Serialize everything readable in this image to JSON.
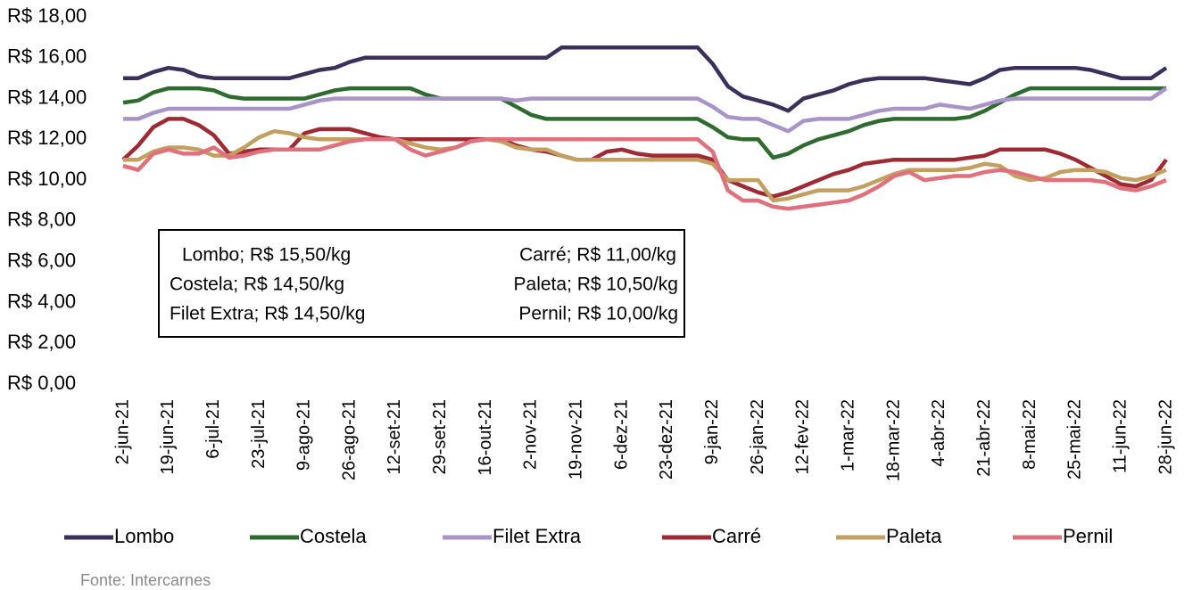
{
  "chart_data": {
    "type": "line",
    "categories": [
      "2-jun-21",
      null,
      null,
      "19-jun-21",
      null,
      null,
      "6-jul-21",
      null,
      null,
      "23-jul-21",
      null,
      null,
      "9-ago-21",
      null,
      null,
      "26-ago-21",
      null,
      null,
      "12-set-21",
      null,
      null,
      "29-set-21",
      null,
      null,
      "16-out-21",
      null,
      null,
      "2-nov-21",
      null,
      null,
      "19-nov-21",
      null,
      null,
      "6-dez-21",
      null,
      null,
      "23-dez-21",
      null,
      null,
      "9-jan-22",
      null,
      null,
      "26-jan-22",
      null,
      null,
      "12-fev-22",
      null,
      null,
      "1-mar-22",
      null,
      null,
      "18-mar-22",
      null,
      null,
      "4-abr-22",
      null,
      null,
      "21-abr-22",
      null,
      null,
      "8-mai-22",
      null,
      null,
      "25-mai-22",
      null,
      null,
      "11-jun-22",
      null,
      null,
      "28-jun-22"
    ],
    "series": [
      {
        "name": "Lombo",
        "color": "#3d2f5b",
        "values": [
          15,
          15,
          15.3,
          15.5,
          15.4,
          15.1,
          15,
          15,
          15,
          15,
          15,
          15,
          15.2,
          15.4,
          15.5,
          15.8,
          16,
          16,
          16,
          16,
          16,
          16,
          16,
          16,
          16,
          16,
          16,
          16,
          16,
          16.5,
          16.5,
          16.5,
          16.5,
          16.5,
          16.5,
          16.5,
          16.5,
          16.5,
          16.5,
          15.7,
          14.6,
          14.1,
          13.9,
          13.7,
          13.4,
          14.0,
          14.2,
          14.4,
          14.7,
          14.9,
          15,
          15,
          15,
          15,
          14.9,
          14.8,
          14.7,
          15.0,
          15.4,
          15.5,
          15.5,
          15.5,
          15.5,
          15.5,
          15.4,
          15.2,
          15,
          15,
          15,
          15.5
        ]
      },
      {
        "name": "Costela",
        "color": "#2e6b2e",
        "values": [
          13.8,
          13.9,
          14.3,
          14.5,
          14.5,
          14.5,
          14.4,
          14.1,
          14,
          14,
          14,
          14,
          14,
          14.2,
          14.4,
          14.5,
          14.5,
          14.5,
          14.5,
          14.5,
          14.2,
          14,
          14,
          14,
          14,
          14,
          13.6,
          13.2,
          13,
          13,
          13,
          13,
          13,
          13,
          13,
          13,
          13,
          13,
          13,
          12.6,
          12.1,
          12,
          12,
          11.1,
          11.3,
          11.7,
          12,
          12.2,
          12.4,
          12.7,
          12.9,
          13,
          13,
          13,
          13,
          13,
          13.1,
          13.4,
          13.8,
          14.2,
          14.5,
          14.5,
          14.5,
          14.5,
          14.5,
          14.5,
          14.5,
          14.5,
          14.5,
          14.5
        ]
      },
      {
        "name": "Filet Extra",
        "color": "#a894c8",
        "values": [
          13,
          13,
          13.3,
          13.5,
          13.5,
          13.5,
          13.5,
          13.5,
          13.5,
          13.5,
          13.5,
          13.5,
          13.7,
          13.9,
          14,
          14,
          14,
          14,
          14,
          14,
          14,
          14,
          14,
          14,
          14,
          14,
          13.9,
          14,
          14,
          14,
          14,
          14,
          14,
          14,
          14,
          14,
          14,
          14,
          14,
          13.6,
          13.1,
          13,
          13,
          12.7,
          12.4,
          12.9,
          13,
          13,
          13,
          13.2,
          13.4,
          13.5,
          13.5,
          13.5,
          13.7,
          13.6,
          13.5,
          13.7,
          13.9,
          14,
          14,
          14,
          14,
          14,
          14,
          14,
          14,
          14,
          14,
          14.5
        ]
      },
      {
        "name": "Carré",
        "color": "#9e2a33",
        "values": [
          11,
          11.7,
          12.6,
          13,
          13,
          12.7,
          12.2,
          11.3,
          11.4,
          11.5,
          11.5,
          11.5,
          12.3,
          12.5,
          12.5,
          12.5,
          12.3,
          12.1,
          12,
          12,
          12,
          12,
          12,
          12,
          12,
          12,
          11.7,
          11.5,
          11.4,
          11.2,
          11,
          11,
          11.4,
          11.5,
          11.3,
          11.2,
          11.2,
          11.2,
          11.2,
          11,
          10,
          9.7,
          9.4,
          9.2,
          9.4,
          9.7,
          10,
          10.3,
          10.5,
          10.8,
          10.9,
          11,
          11,
          11,
          11,
          11,
          11.1,
          11.2,
          11.5,
          11.5,
          11.5,
          11.5,
          11.3,
          11,
          10.6,
          10.2,
          9.8,
          9.7,
          10,
          11
        ]
      },
      {
        "name": "Paleta",
        "color": "#c4a060",
        "values": [
          11,
          11,
          11.4,
          11.6,
          11.6,
          11.5,
          11.2,
          11.2,
          11.6,
          12.1,
          12.4,
          12.3,
          12.1,
          12,
          12,
          12,
          12,
          12,
          12,
          11.8,
          11.6,
          11.5,
          11.6,
          11.9,
          12,
          11.9,
          11.6,
          11.5,
          11.5,
          11.2,
          11,
          11,
          11,
          11,
          11,
          11,
          11,
          11,
          11,
          10.8,
          10,
          10,
          10,
          9,
          9.1,
          9.3,
          9.5,
          9.5,
          9.5,
          9.7,
          10,
          10.3,
          10.5,
          10.5,
          10.5,
          10.5,
          10.6,
          10.8,
          10.7,
          10.2,
          10,
          10.1,
          10.4,
          10.5,
          10.5,
          10.4,
          10.1,
          10,
          10.2,
          10.5
        ]
      },
      {
        "name": "Pernil",
        "color": "#e0707c",
        "values": [
          10.7,
          10.5,
          11.3,
          11.5,
          11.3,
          11.3,
          11.6,
          11.1,
          11.2,
          11.4,
          11.5,
          11.5,
          11.5,
          11.5,
          11.7,
          11.9,
          12,
          12,
          12,
          11.5,
          11.2,
          11.4,
          11.6,
          11.9,
          12,
          12,
          12,
          12,
          12,
          12,
          12,
          12,
          12,
          12,
          12,
          12,
          12,
          12,
          12,
          11.4,
          9.5,
          9,
          9,
          8.7,
          8.6,
          8.7,
          8.8,
          8.9,
          9,
          9.3,
          9.7,
          10.2,
          10.4,
          10,
          10.1,
          10.2,
          10.2,
          10.4,
          10.5,
          10.4,
          10.2,
          10,
          10,
          10,
          10,
          9.9,
          9.6,
          9.5,
          9.7,
          10
        ]
      }
    ],
    "ylim": [
      0,
      18
    ],
    "yticks": [
      {
        "value": 0,
        "label": "R$ 0,00"
      },
      {
        "value": 2,
        "label": "R$ 2,00"
      },
      {
        "value": 4,
        "label": "R$ 4,00"
      },
      {
        "value": 6,
        "label": "R$ 6,00"
      },
      {
        "value": 8,
        "label": "R$ 8,00"
      },
      {
        "value": 10,
        "label": "R$ 10,00"
      },
      {
        "value": 12,
        "label": "R$ 12,00"
      },
      {
        "value": 14,
        "label": "R$ 14,00"
      },
      {
        "value": 16,
        "label": "R$ 16,00"
      },
      {
        "value": 18,
        "label": "R$ 18,00"
      }
    ],
    "grid": false,
    "legend": "bottom",
    "annotations": [
      "Lombo; R$ 15,50/kg",
      "Costela; R$ 14,50/kg",
      "Filet Extra; R$ 14,50/kg",
      "Carré; R$ 11,00/kg",
      "Paleta; R$ 10,50/kg",
      "Pernil; R$ 10,00/kg"
    ],
    "source": "Fonte: Intercarnes"
  }
}
